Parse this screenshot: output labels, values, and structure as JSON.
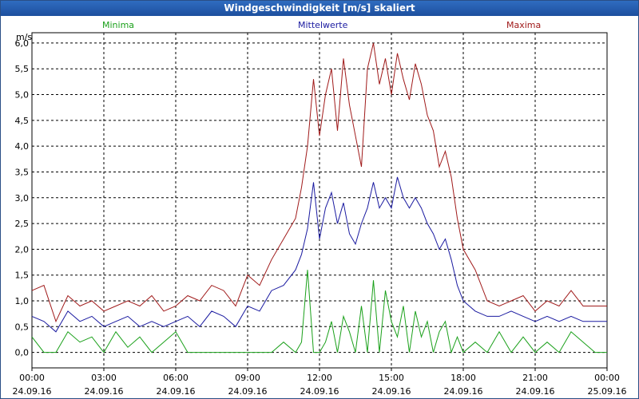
{
  "window": {
    "title": "Windgeschwindigkeit [m/s] skaliert"
  },
  "chart_data": {
    "type": "line",
    "title": "Windgeschwindigkeit [m/s] skaliert",
    "ylabel": "m/s",
    "xlabel": "",
    "ylim": [
      -0.3,
      6.2
    ],
    "xlim": [
      0,
      24
    ],
    "grid": true,
    "legend": "top",
    "y_ticks": [
      "6,0",
      "5,5",
      "5,0",
      "4,5",
      "4,0",
      "3,5",
      "3,0",
      "2,5",
      "2,0",
      "1,5",
      "1,0",
      "0,5",
      "0,0"
    ],
    "y_tick_values": [
      6.0,
      5.5,
      5.0,
      4.5,
      4.0,
      3.5,
      3.0,
      2.5,
      2.0,
      1.5,
      1.0,
      0.5,
      0.0
    ],
    "x_ticks": [
      {
        "time": "00:00",
        "date": "24.09.16"
      },
      {
        "time": "03:00",
        "date": "24.09.16"
      },
      {
        "time": "06:00",
        "date": "24.09.16"
      },
      {
        "time": "09:00",
        "date": "24.09.16"
      },
      {
        "time": "12:00",
        "date": "24.09.16"
      },
      {
        "time": "15:00",
        "date": "24.09.16"
      },
      {
        "time": "18:00",
        "date": "24.09.16"
      },
      {
        "time": "21:00",
        "date": "24.09.16"
      },
      {
        "time": "00:00",
        "date": "25.09.16"
      }
    ],
    "x_tick_values": [
      0,
      3,
      6,
      9,
      12,
      15,
      18,
      21,
      24
    ],
    "series": [
      {
        "name": "Maxima",
        "color": "#a01a1a",
        "x": [
          0,
          0.5,
          1,
          1.5,
          2,
          2.5,
          3,
          3.5,
          4,
          4.5,
          5,
          5.5,
          6,
          6.5,
          7,
          7.5,
          8,
          8.5,
          9,
          9.5,
          10,
          10.5,
          11,
          11.25,
          11.5,
          11.75,
          12,
          12.25,
          12.5,
          12.75,
          13,
          13.25,
          13.5,
          13.75,
          14,
          14.25,
          14.5,
          14.75,
          15,
          15.25,
          15.5,
          15.75,
          16,
          16.25,
          16.5,
          16.75,
          17,
          17.25,
          17.5,
          17.75,
          18,
          18.5,
          19,
          19.5,
          20,
          20.5,
          21,
          21.5,
          22,
          22.5,
          23,
          23.5,
          24
        ],
        "y": [
          1.2,
          1.3,
          0.6,
          1.1,
          0.9,
          1.0,
          0.8,
          0.9,
          1.0,
          0.9,
          1.1,
          0.8,
          0.9,
          1.1,
          1.0,
          1.3,
          1.2,
          0.9,
          1.5,
          1.3,
          1.8,
          2.2,
          2.6,
          3.2,
          4.0,
          5.3,
          4.2,
          5.0,
          5.5,
          4.3,
          5.7,
          4.8,
          4.2,
          3.6,
          5.5,
          6.0,
          5.2,
          5.7,
          5.0,
          5.8,
          5.3,
          4.9,
          5.6,
          5.2,
          4.6,
          4.3,
          3.6,
          3.9,
          3.4,
          2.6,
          2.0,
          1.6,
          1.0,
          0.9,
          1.0,
          1.1,
          0.8,
          1.0,
          0.9,
          1.2,
          0.9,
          0.9,
          0.9
        ]
      },
      {
        "name": "Mittelwerte",
        "color": "#1a1aa0",
        "x": [
          0,
          0.5,
          1,
          1.5,
          2,
          2.5,
          3,
          3.5,
          4,
          4.5,
          5,
          5.5,
          6,
          6.5,
          7,
          7.5,
          8,
          8.5,
          9,
          9.5,
          10,
          10.5,
          11,
          11.25,
          11.5,
          11.75,
          12,
          12.25,
          12.5,
          12.75,
          13,
          13.25,
          13.5,
          13.75,
          14,
          14.25,
          14.5,
          14.75,
          15,
          15.25,
          15.5,
          15.75,
          16,
          16.25,
          16.5,
          16.75,
          17,
          17.25,
          17.5,
          17.75,
          18,
          18.5,
          19,
          19.5,
          20,
          20.5,
          21,
          21.5,
          22,
          22.5,
          23,
          23.5,
          24
        ],
        "y": [
          0.7,
          0.6,
          0.4,
          0.8,
          0.6,
          0.7,
          0.5,
          0.6,
          0.7,
          0.5,
          0.6,
          0.5,
          0.6,
          0.7,
          0.5,
          0.8,
          0.7,
          0.5,
          0.9,
          0.8,
          1.2,
          1.3,
          1.6,
          1.9,
          2.4,
          3.3,
          2.2,
          2.8,
          3.1,
          2.5,
          2.9,
          2.3,
          2.1,
          2.5,
          2.8,
          3.3,
          2.8,
          3.0,
          2.8,
          3.4,
          3.0,
          2.8,
          3.0,
          2.8,
          2.5,
          2.3,
          2.0,
          2.2,
          1.8,
          1.3,
          1.0,
          0.8,
          0.7,
          0.7,
          0.8,
          0.7,
          0.6,
          0.7,
          0.6,
          0.7,
          0.6,
          0.6,
          0.6
        ]
      },
      {
        "name": "Minima",
        "color": "#1aa01a",
        "x": [
          0,
          0.5,
          1,
          1.5,
          2,
          2.5,
          3,
          3.5,
          4,
          4.5,
          5,
          5.5,
          6,
          6.5,
          7,
          7.5,
          8,
          8.5,
          9,
          9.5,
          10,
          10.5,
          11,
          11.25,
          11.5,
          11.75,
          12,
          12.25,
          12.5,
          12.75,
          13,
          13.25,
          13.5,
          13.75,
          14,
          14.25,
          14.5,
          14.75,
          15,
          15.25,
          15.5,
          15.75,
          16,
          16.25,
          16.5,
          16.75,
          17,
          17.25,
          17.5,
          17.75,
          18,
          18.5,
          19,
          19.5,
          20,
          20.5,
          21,
          21.5,
          22,
          22.5,
          23,
          23.5,
          24
        ],
        "y": [
          0.3,
          0.0,
          0.0,
          0.4,
          0.2,
          0.3,
          0.0,
          0.4,
          0.1,
          0.3,
          0.0,
          0.2,
          0.4,
          0.0,
          0.0,
          0.0,
          0.0,
          0.0,
          0.0,
          0.0,
          0.0,
          0.2,
          0.0,
          0.2,
          1.6,
          0.0,
          0.0,
          0.2,
          0.6,
          0.0,
          0.7,
          0.4,
          0.0,
          0.9,
          0.0,
          1.4,
          0.0,
          1.2,
          0.6,
          0.3,
          0.9,
          0.0,
          0.8,
          0.3,
          0.6,
          0.0,
          0.4,
          0.6,
          0.0,
          0.3,
          0.0,
          0.2,
          0.0,
          0.4,
          0.0,
          0.3,
          0.0,
          0.2,
          0.0,
          0.4,
          0.2,
          0.0,
          0.0
        ]
      }
    ]
  }
}
